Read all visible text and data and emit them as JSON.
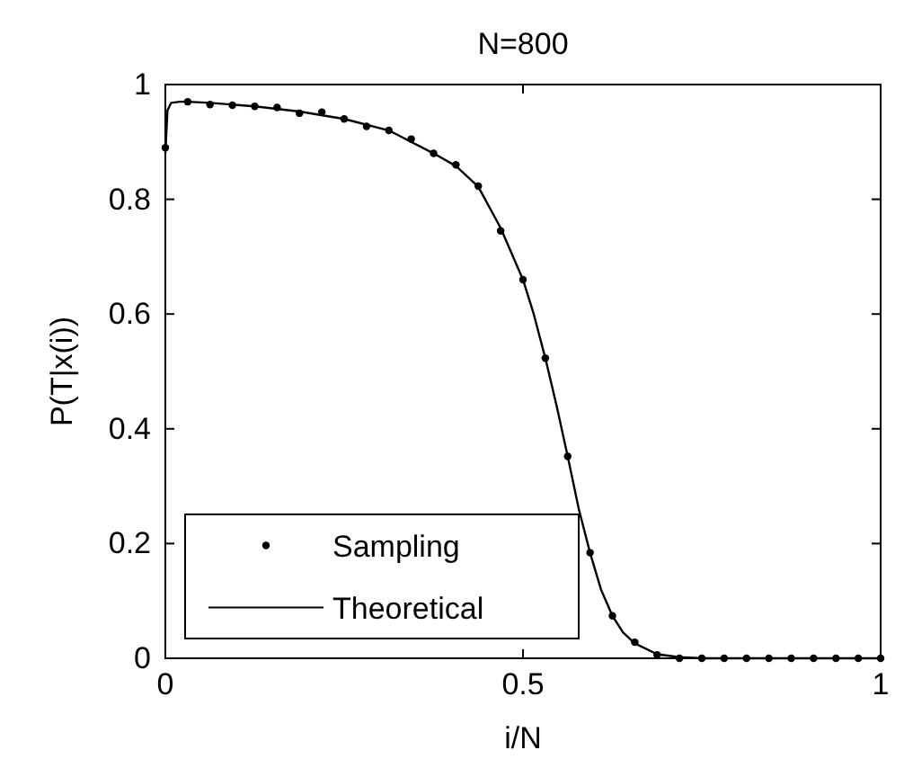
{
  "chart_data": {
    "type": "line",
    "title": "N=800",
    "xlabel": "i/N",
    "ylabel": "P(T|x(i))",
    "xlim": [
      0,
      1
    ],
    "xticks": [
      0,
      0.5,
      1
    ],
    "ylim": [
      0,
      1
    ],
    "yticks": [
      0,
      0.2,
      0.4,
      0.6,
      0.8,
      1
    ],
    "grid": false,
    "legend": "bottom left",
    "series": [
      {
        "name": "Sampling",
        "type": "scatter",
        "marker": "circle",
        "color": "#000000",
        "x": [
          0,
          0.03125,
          0.0625,
          0.09375,
          0.125,
          0.15625,
          0.1875,
          0.21875,
          0.25,
          0.28125,
          0.3125,
          0.34375,
          0.375,
          0.40625,
          0.4375,
          0.46875,
          0.5,
          0.53125,
          0.5625,
          0.59375,
          0.625,
          0.65625,
          0.6875,
          0.71875,
          0.75,
          0.78125,
          0.8125,
          0.84375,
          0.875,
          0.90625,
          0.9375,
          0.96875,
          1
        ],
        "values": [
          0.89,
          0.97,
          0.965,
          0.964,
          0.962,
          0.96,
          0.95,
          0.952,
          0.94,
          0.927,
          0.92,
          0.905,
          0.88,
          0.86,
          0.823,
          0.745,
          0.66,
          0.523,
          0.352,
          0.184,
          0.074,
          0.028,
          0.006,
          0,
          0,
          0,
          0,
          0,
          0,
          0,
          0,
          0,
          0
        ]
      },
      {
        "name": "Theoretical",
        "type": "line",
        "marker": "none",
        "line_style": "solid",
        "color": "#000000",
        "x": [
          0,
          0.003,
          0.008,
          0.02,
          0.03125,
          0.0625,
          0.125,
          0.1875,
          0.25,
          0.3125,
          0.375,
          0.40625,
          0.4375,
          0.46875,
          0.5,
          0.515,
          0.53125,
          0.547,
          0.5625,
          0.578,
          0.59375,
          0.609,
          0.625,
          0.64,
          0.65625,
          0.6875,
          0.71875,
          0.75,
          0.875,
          1
        ],
        "values": [
          0.88,
          0.955,
          0.968,
          0.97,
          0.97,
          0.968,
          0.962,
          0.953,
          0.94,
          0.92,
          0.88,
          0.858,
          0.822,
          0.75,
          0.66,
          0.6,
          0.523,
          0.44,
          0.352,
          0.26,
          0.184,
          0.12,
          0.074,
          0.045,
          0.026,
          0.007,
          0.002,
          0,
          0,
          0
        ]
      }
    ]
  }
}
